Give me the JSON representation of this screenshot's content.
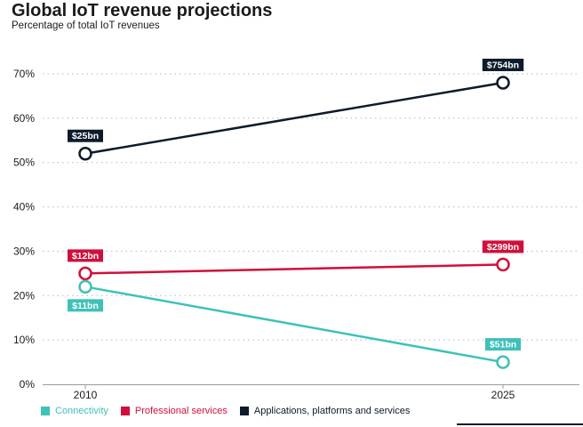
{
  "chart_data": {
    "type": "line",
    "title": "Global IoT revenue projections",
    "subtitle": "Percentage of total IoT revenues",
    "x": [
      "2010",
      "2025"
    ],
    "ylim": [
      0,
      70
    ],
    "yticks": [
      "0%",
      "10%",
      "20%",
      "30%",
      "40%",
      "50%",
      "60%",
      "70%"
    ],
    "grid": true,
    "series": [
      {
        "name": "Applications, platforms and services",
        "color": "#0d1b2a",
        "values": [
          52,
          68
        ],
        "labels": [
          "$25bn",
          "$754bn"
        ],
        "label_side": [
          "above",
          "above"
        ]
      },
      {
        "name": "Professional services",
        "color": "#d0103a",
        "values": [
          25,
          27
        ],
        "labels": [
          "$12bn",
          "$299bn"
        ],
        "label_side": [
          "above",
          "above"
        ]
      },
      {
        "name": "Connectivity",
        "color": "#3ec1b8",
        "values": [
          22,
          5
        ],
        "labels": [
          "$11bn",
          "$51bn"
        ],
        "label_side": [
          "below",
          "above"
        ]
      }
    ],
    "legend": [
      "Connectivity",
      "Professional services",
      "Applications, platforms and services"
    ]
  }
}
